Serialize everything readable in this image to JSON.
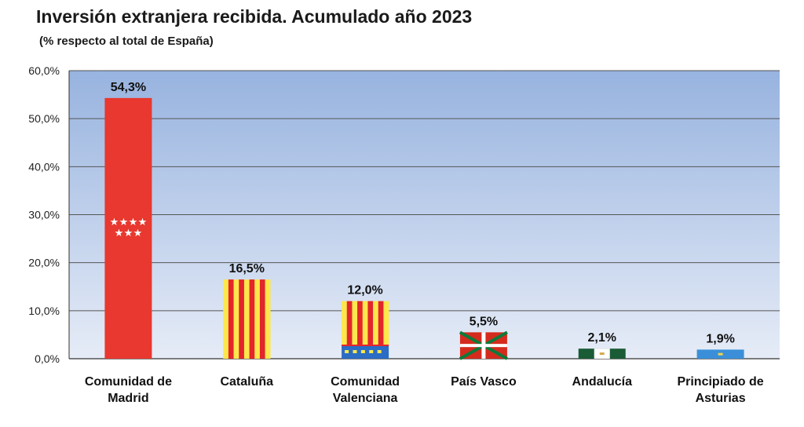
{
  "chart_data": {
    "type": "bar",
    "title": "Inversión extranjera recibida. Acumulado año 2023",
    "subtitle": "(% respecto al total de España)",
    "categories": [
      [
        "Comunidad de",
        "Madrid"
      ],
      [
        "Cataluña"
      ],
      [
        "Comunidad",
        "Valenciana"
      ],
      [
        "País Vasco"
      ],
      [
        "Andalucía"
      ],
      [
        "Principiado de",
        "Asturias"
      ]
    ],
    "values": [
      54.3,
      16.5,
      12.0,
      5.5,
      2.1,
      1.9
    ],
    "data_labels": [
      "54,3%",
      "16,5%",
      "12,0%",
      "5,5%",
      "2,1%",
      "1,9%"
    ],
    "flags": [
      "madrid",
      "cataluna",
      "valenciana",
      "vasco",
      "andalucia",
      "asturias"
    ],
    "ylim": [
      0,
      60
    ],
    "yticks": [
      0,
      10,
      20,
      30,
      40,
      50,
      60
    ],
    "ytick_labels": [
      "0,0%",
      "10,0%",
      "20,0%",
      "30,0%",
      "40,0%",
      "50,0%",
      "60,0%"
    ],
    "xlabel": "",
    "ylabel": "",
    "grid": true
  },
  "colors": {
    "plot_top": "#97b3df",
    "plot_bottom": "#e6ecf7",
    "madrid_red": "#e8382f",
    "senyera_yellow": "#fde74c",
    "senyera_red": "#e2262b",
    "valencia_blue": "#2b6cc4",
    "ikurrina_red": "#d52b1e",
    "ikurrina_green": "#0c7a3a",
    "andalucia_green": "#1a5c36",
    "asturias_blue": "#3b8fd9"
  }
}
